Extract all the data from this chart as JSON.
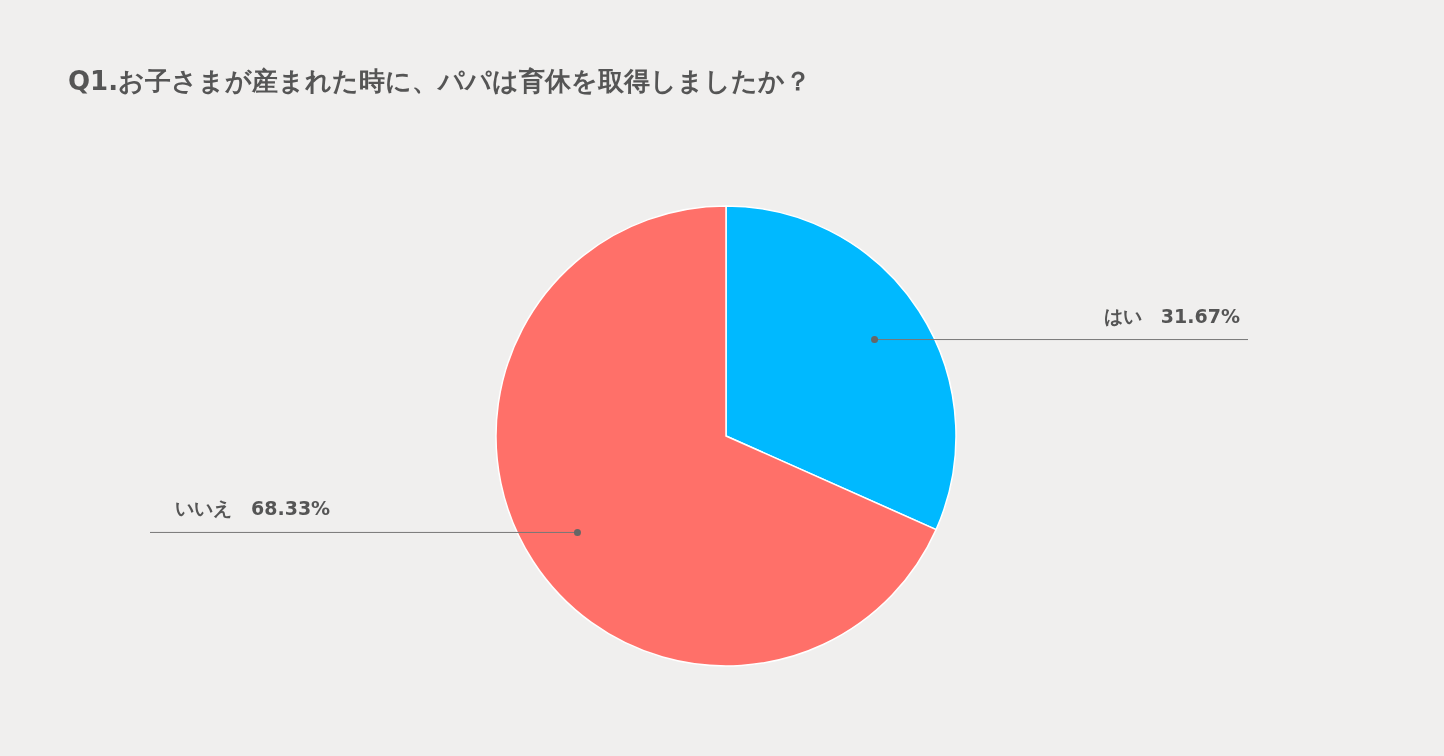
{
  "chart_data": {
    "type": "pie",
    "title": "Q1.お子さまが産まれた時に、パパは育休を取得しましたか？",
    "categories": [
      "はい",
      "いいえ"
    ],
    "values": [
      31.67,
      68.33
    ],
    "colors": [
      "#00b9ff",
      "#ff7069"
    ],
    "value_labels": [
      "31.67%",
      "68.33%"
    ]
  }
}
